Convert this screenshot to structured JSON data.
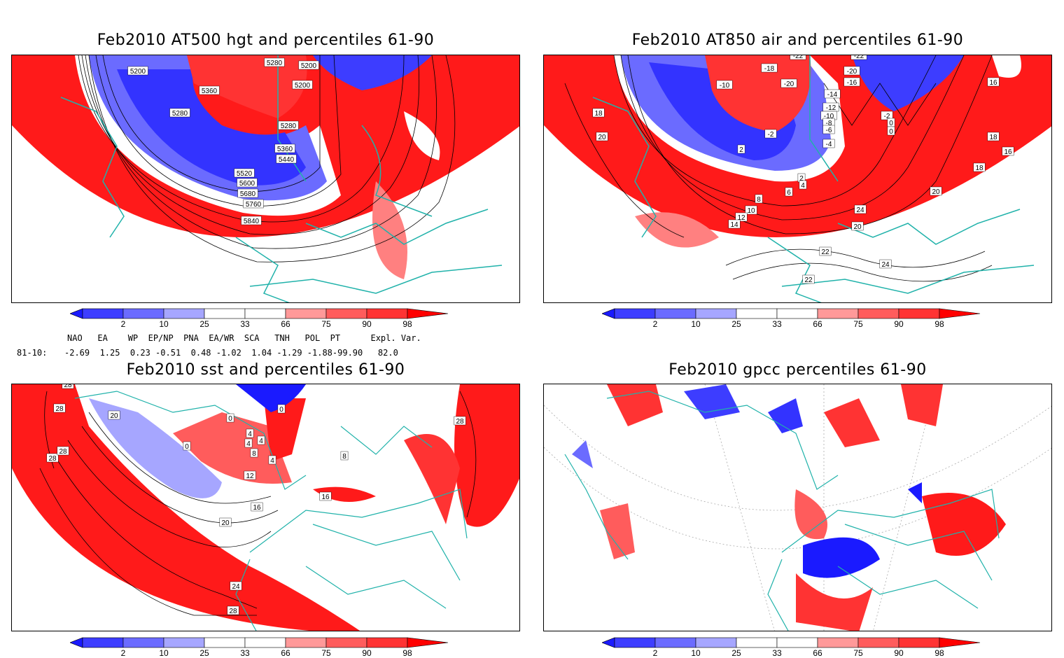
{
  "panels": [
    {
      "title": "Feb2010 AT500 hgt and percentiles 61-90",
      "contour_labels": [
        "5200",
        "5280",
        "5200",
        "5200",
        "5360",
        "5280",
        "5280",
        "5360",
        "5440",
        "5520",
        "5600",
        "5680",
        "5760",
        "5840"
      ]
    },
    {
      "title": "Feb2010 AT850 air and percentiles 61-90",
      "contour_labels": [
        "-22",
        "-22",
        "-20",
        "-18",
        "-16",
        "-10",
        "-20",
        "-14",
        "-12",
        "-10",
        "-8",
        "-6",
        "-4",
        "-2",
        "-2",
        "0",
        "2",
        "0",
        "2",
        "4",
        "6",
        "8",
        "10",
        "12",
        "14",
        "16",
        "18",
        "20",
        "18",
        "16",
        "18",
        "20",
        "24",
        "20",
        "22",
        "24",
        "22",
        "20"
      ]
    },
    {
      "title": "Feb2010 sst and percentiles 61-90",
      "contour_labels": [
        "28",
        "28",
        "28",
        "28",
        "20",
        "0",
        "0",
        "0",
        "4",
        "4",
        "4",
        "8",
        "4",
        "12",
        "16",
        "20",
        "24",
        "28",
        "28",
        "16",
        "8"
      ]
    },
    {
      "title": "Feb2010 gpcc percentiles 61-90",
      "contour_labels": []
    }
  ],
  "colorbar": {
    "ticks": [
      "2",
      "10",
      "25",
      "33",
      "66",
      "75",
      "90",
      "98"
    ],
    "colors": {
      "below2": "#1a1aff",
      "b10": "#3d3dff",
      "b25": "#6b6bff",
      "b33": "#a6a6ff",
      "neutral": "#ffffff",
      "a66": "#ff9999",
      "a75": "#ff5c5c",
      "a90": "#ff3333",
      "above98": "#ff0000"
    }
  },
  "indices": {
    "header": "NAO   EA    WP  EP/NP  PNA  EA/WR  SCA   TNH   POL  PT      Expl. Var.",
    "row_label": "81-10:",
    "row_values": "-2.69  1.25  0.23 -0.51  0.48 -1.02  1.04 -1.29 -1.88-99.90   82.0"
  },
  "colors": {
    "coast": "#20b2aa",
    "contour": "#000000",
    "red": "#ff1a1a",
    "blue": "#3333ff"
  }
}
